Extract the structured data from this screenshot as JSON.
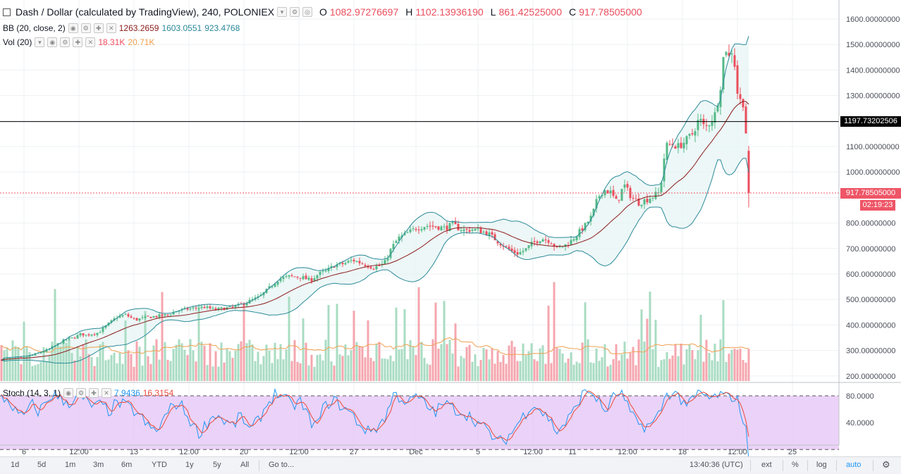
{
  "header": {
    "symbol": "Dash / Dollar (calculated by TradingView), 240, POLONIEX",
    "open_label": "O",
    "open": "1082.97276697",
    "high_label": "H",
    "high": "1102.13936190",
    "low_label": "L",
    "low": "861.42525000",
    "close_label": "C",
    "close": "917.78505000"
  },
  "indicators": {
    "bb": {
      "label": "BB (20, close, 2)",
      "basis": "1263.2659",
      "upper": "1603.0551",
      "lower": "923.4768"
    },
    "vol": {
      "label": "Vol (20)",
      "value": "18.31K",
      "ma": "20.71K"
    },
    "stoch": {
      "label": "Stoch (14, 3, 1)",
      "k": "7.9436",
      "d": "16.3154"
    }
  },
  "price_axis": {
    "ticks": [
      "1600.00000000",
      "1500.00000000",
      "1400.00000000",
      "1300.00000000",
      "1100.00000000",
      "1000.00000000",
      "800.00000000",
      "700.00000000",
      "600.00000000",
      "500.00000000",
      "400.00000000",
      "300.00000000",
      "200.00000000"
    ],
    "hline_label": "1197.73202506",
    "last_price_label": "917.78505000",
    "countdown": "02:19:23"
  },
  "stoch_axis": {
    "ticks": [
      "80.0000",
      "40.0000"
    ]
  },
  "time_axis": {
    "ticks": [
      "6",
      "12:00",
      "13",
      "12:00",
      "20",
      "12:00",
      "27",
      "Dec",
      "5",
      "12:00",
      "11",
      "12:00",
      "18",
      "12:00",
      "25"
    ]
  },
  "bottom_bar": {
    "ranges": [
      "1d",
      "5d",
      "1m",
      "3m",
      "6m",
      "YTD",
      "1y",
      "5y",
      "All"
    ],
    "goto": "Go to...",
    "clock": "13:40:36 (UTC)",
    "ext": "ext",
    "percent": "%",
    "log": "log",
    "auto": "auto"
  },
  "colors": {
    "up": "#53b987",
    "down": "#eb4d5c",
    "bb_band": "#2b8a99",
    "bb_basis": "#8b1a1a",
    "k_line": "#2196f3",
    "d_line": "#e84a3a",
    "stoch_fill": "#e4c3f5",
    "vol_ma": "#f0a050",
    "last_price": "#ee5566",
    "hline": "#000000"
  },
  "chart_data": {
    "type": "candlestick",
    "title": "Dash / Dollar (calculated by TradingView), 240, POLONIEX",
    "price_range": [
      190,
      1630
    ],
    "hline": 1197.73202506,
    "last_close": 917.78505,
    "anchors": [
      [
        0,
        265
      ],
      [
        20,
        268
      ],
      [
        35,
        272
      ],
      [
        50,
        285
      ],
      [
        70,
        305
      ],
      [
        85,
        330
      ],
      [
        95,
        345
      ],
      [
        105,
        350
      ],
      [
        115,
        365
      ],
      [
        122,
        360
      ],
      [
        130,
        365
      ],
      [
        140,
        370
      ],
      [
        150,
        395
      ],
      [
        165,
        430
      ],
      [
        178,
        440
      ],
      [
        192,
        420
      ],
      [
        208,
        430
      ],
      [
        225,
        435
      ],
      [
        238,
        440
      ],
      [
        250,
        455
      ],
      [
        260,
        460
      ],
      [
        275,
        465
      ],
      [
        290,
        470
      ],
      [
        305,
        460
      ],
      [
        318,
        465
      ],
      [
        330,
        470
      ],
      [
        342,
        480
      ],
      [
        355,
        495
      ],
      [
        368,
        510
      ],
      [
        382,
        545
      ],
      [
        395,
        580
      ],
      [
        410,
        590
      ],
      [
        425,
        590
      ],
      [
        440,
        575
      ],
      [
        452,
        600
      ],
      [
        462,
        610
      ],
      [
        475,
        635
      ],
      [
        488,
        640
      ],
      [
        500,
        655
      ],
      [
        515,
        640
      ],
      [
        530,
        625
      ],
      [
        545,
        640
      ],
      [
        555,
        700
      ],
      [
        565,
        740
      ],
      [
        575,
        755
      ],
      [
        590,
        780
      ],
      [
        605,
        790
      ],
      [
        620,
        785
      ],
      [
        632,
        780
      ],
      [
        642,
        795
      ],
      [
        650,
        780
      ],
      [
        660,
        770
      ],
      [
        670,
        775
      ],
      [
        680,
        770
      ],
      [
        692,
        760
      ],
      [
        705,
        730
      ],
      [
        715,
        710
      ],
      [
        725,
        690
      ],
      [
        735,
        680
      ],
      [
        745,
        695
      ],
      [
        755,
        720
      ],
      [
        768,
        740
      ],
      [
        780,
        730
      ],
      [
        790,
        700
      ],
      [
        800,
        710
      ],
      [
        810,
        730
      ],
      [
        820,
        760
      ],
      [
        830,
        790
      ],
      [
        840,
        830
      ],
      [
        848,
        900
      ],
      [
        856,
        930
      ],
      [
        866,
        920
      ],
      [
        875,
        880
      ],
      [
        885,
        950
      ],
      [
        896,
        900
      ],
      [
        906,
        880
      ],
      [
        916,
        890
      ],
      [
        926,
        905
      ],
      [
        936,
        920
      ],
      [
        944,
        1100
      ],
      [
        952,
        1110
      ],
      [
        962,
        1100
      ],
      [
        972,
        1120
      ],
      [
        982,
        1150
      ],
      [
        992,
        1210
      ],
      [
        1000,
        1170
      ],
      [
        1008,
        1200
      ],
      [
        1015,
        1230
      ],
      [
        1022,
        1340
      ],
      [
        1028,
        1500
      ],
      [
        1034,
        1450
      ],
      [
        1040,
        1490
      ],
      [
        1045,
        1320
      ],
      [
        1050,
        1280
      ],
      [
        1055,
        1270
      ],
      [
        1060,
        1080
      ],
      [
        1066,
        1085
      ],
      [
        1069,
        918
      ]
    ],
    "stoch_anchors": [
      [
        0,
        78
      ],
      [
        10,
        76
      ],
      [
        18,
        68
      ],
      [
        28,
        55
      ],
      [
        38,
        62
      ],
      [
        46,
        70
      ],
      [
        55,
        62
      ],
      [
        64,
        72
      ],
      [
        75,
        82
      ],
      [
        88,
        75
      ],
      [
        100,
        72
      ],
      [
        110,
        80
      ],
      [
        120,
        75
      ],
      [
        132,
        68
      ],
      [
        145,
        70
      ],
      [
        155,
        62
      ],
      [
        165,
        72
      ],
      [
        175,
        70
      ],
      [
        185,
        66
      ],
      [
        198,
        58
      ],
      [
        210,
        45
      ],
      [
        222,
        40
      ],
      [
        235,
        58
      ],
      [
        248,
        72
      ],
      [
        258,
        68
      ],
      [
        270,
        52
      ],
      [
        282,
        38
      ],
      [
        292,
        48
      ],
      [
        305,
        60
      ],
      [
        318,
        52
      ],
      [
        330,
        46
      ],
      [
        342,
        58
      ],
      [
        355,
        40
      ],
      [
        368,
        55
      ],
      [
        380,
        72
      ],
      [
        392,
        84
      ],
      [
        402,
        78
      ],
      [
        415,
        68
      ],
      [
        425,
        75
      ],
      [
        438,
        55
      ],
      [
        448,
        45
      ],
      [
        460,
        68
      ],
      [
        472,
        76
      ],
      [
        485,
        68
      ],
      [
        498,
        60
      ],
      [
        510,
        48
      ],
      [
        522,
        40
      ],
      [
        535,
        45
      ],
      [
        548,
        58
      ],
      [
        558,
        82
      ],
      [
        568,
        78
      ],
      [
        580,
        72
      ],
      [
        592,
        80
      ],
      [
        605,
        68
      ],
      [
        618,
        62
      ],
      [
        630,
        72
      ],
      [
        642,
        66
      ],
      [
        655,
        62
      ],
      [
        665,
        58
      ],
      [
        675,
        52
      ],
      [
        685,
        45
      ],
      [
        695,
        38
      ],
      [
        705,
        28
      ],
      [
        715,
        30
      ],
      [
        725,
        38
      ],
      [
        735,
        50
      ],
      [
        745,
        60
      ],
      [
        755,
        72
      ],
      [
        765,
        65
      ],
      [
        778,
        55
      ],
      [
        790,
        40
      ],
      [
        800,
        48
      ],
      [
        812,
        60
      ],
      [
        824,
        80
      ],
      [
        836,
        86
      ],
      [
        846,
        78
      ],
      [
        858,
        62
      ],
      [
        870,
        78
      ],
      [
        880,
        85
      ],
      [
        890,
        68
      ],
      [
        900,
        52
      ],
      [
        912,
        46
      ],
      [
        925,
        48
      ],
      [
        935,
        60
      ],
      [
        944,
        80
      ],
      [
        955,
        85
      ],
      [
        966,
        76
      ],
      [
        978,
        70
      ],
      [
        990,
        82
      ],
      [
        1000,
        80
      ],
      [
        1010,
        76
      ],
      [
        1020,
        82
      ],
      [
        1030,
        78
      ],
      [
        1040,
        80
      ],
      [
        1048,
        72
      ],
      [
        1055,
        50
      ],
      [
        1062,
        35
      ],
      [
        1068,
        10
      ]
    ]
  }
}
